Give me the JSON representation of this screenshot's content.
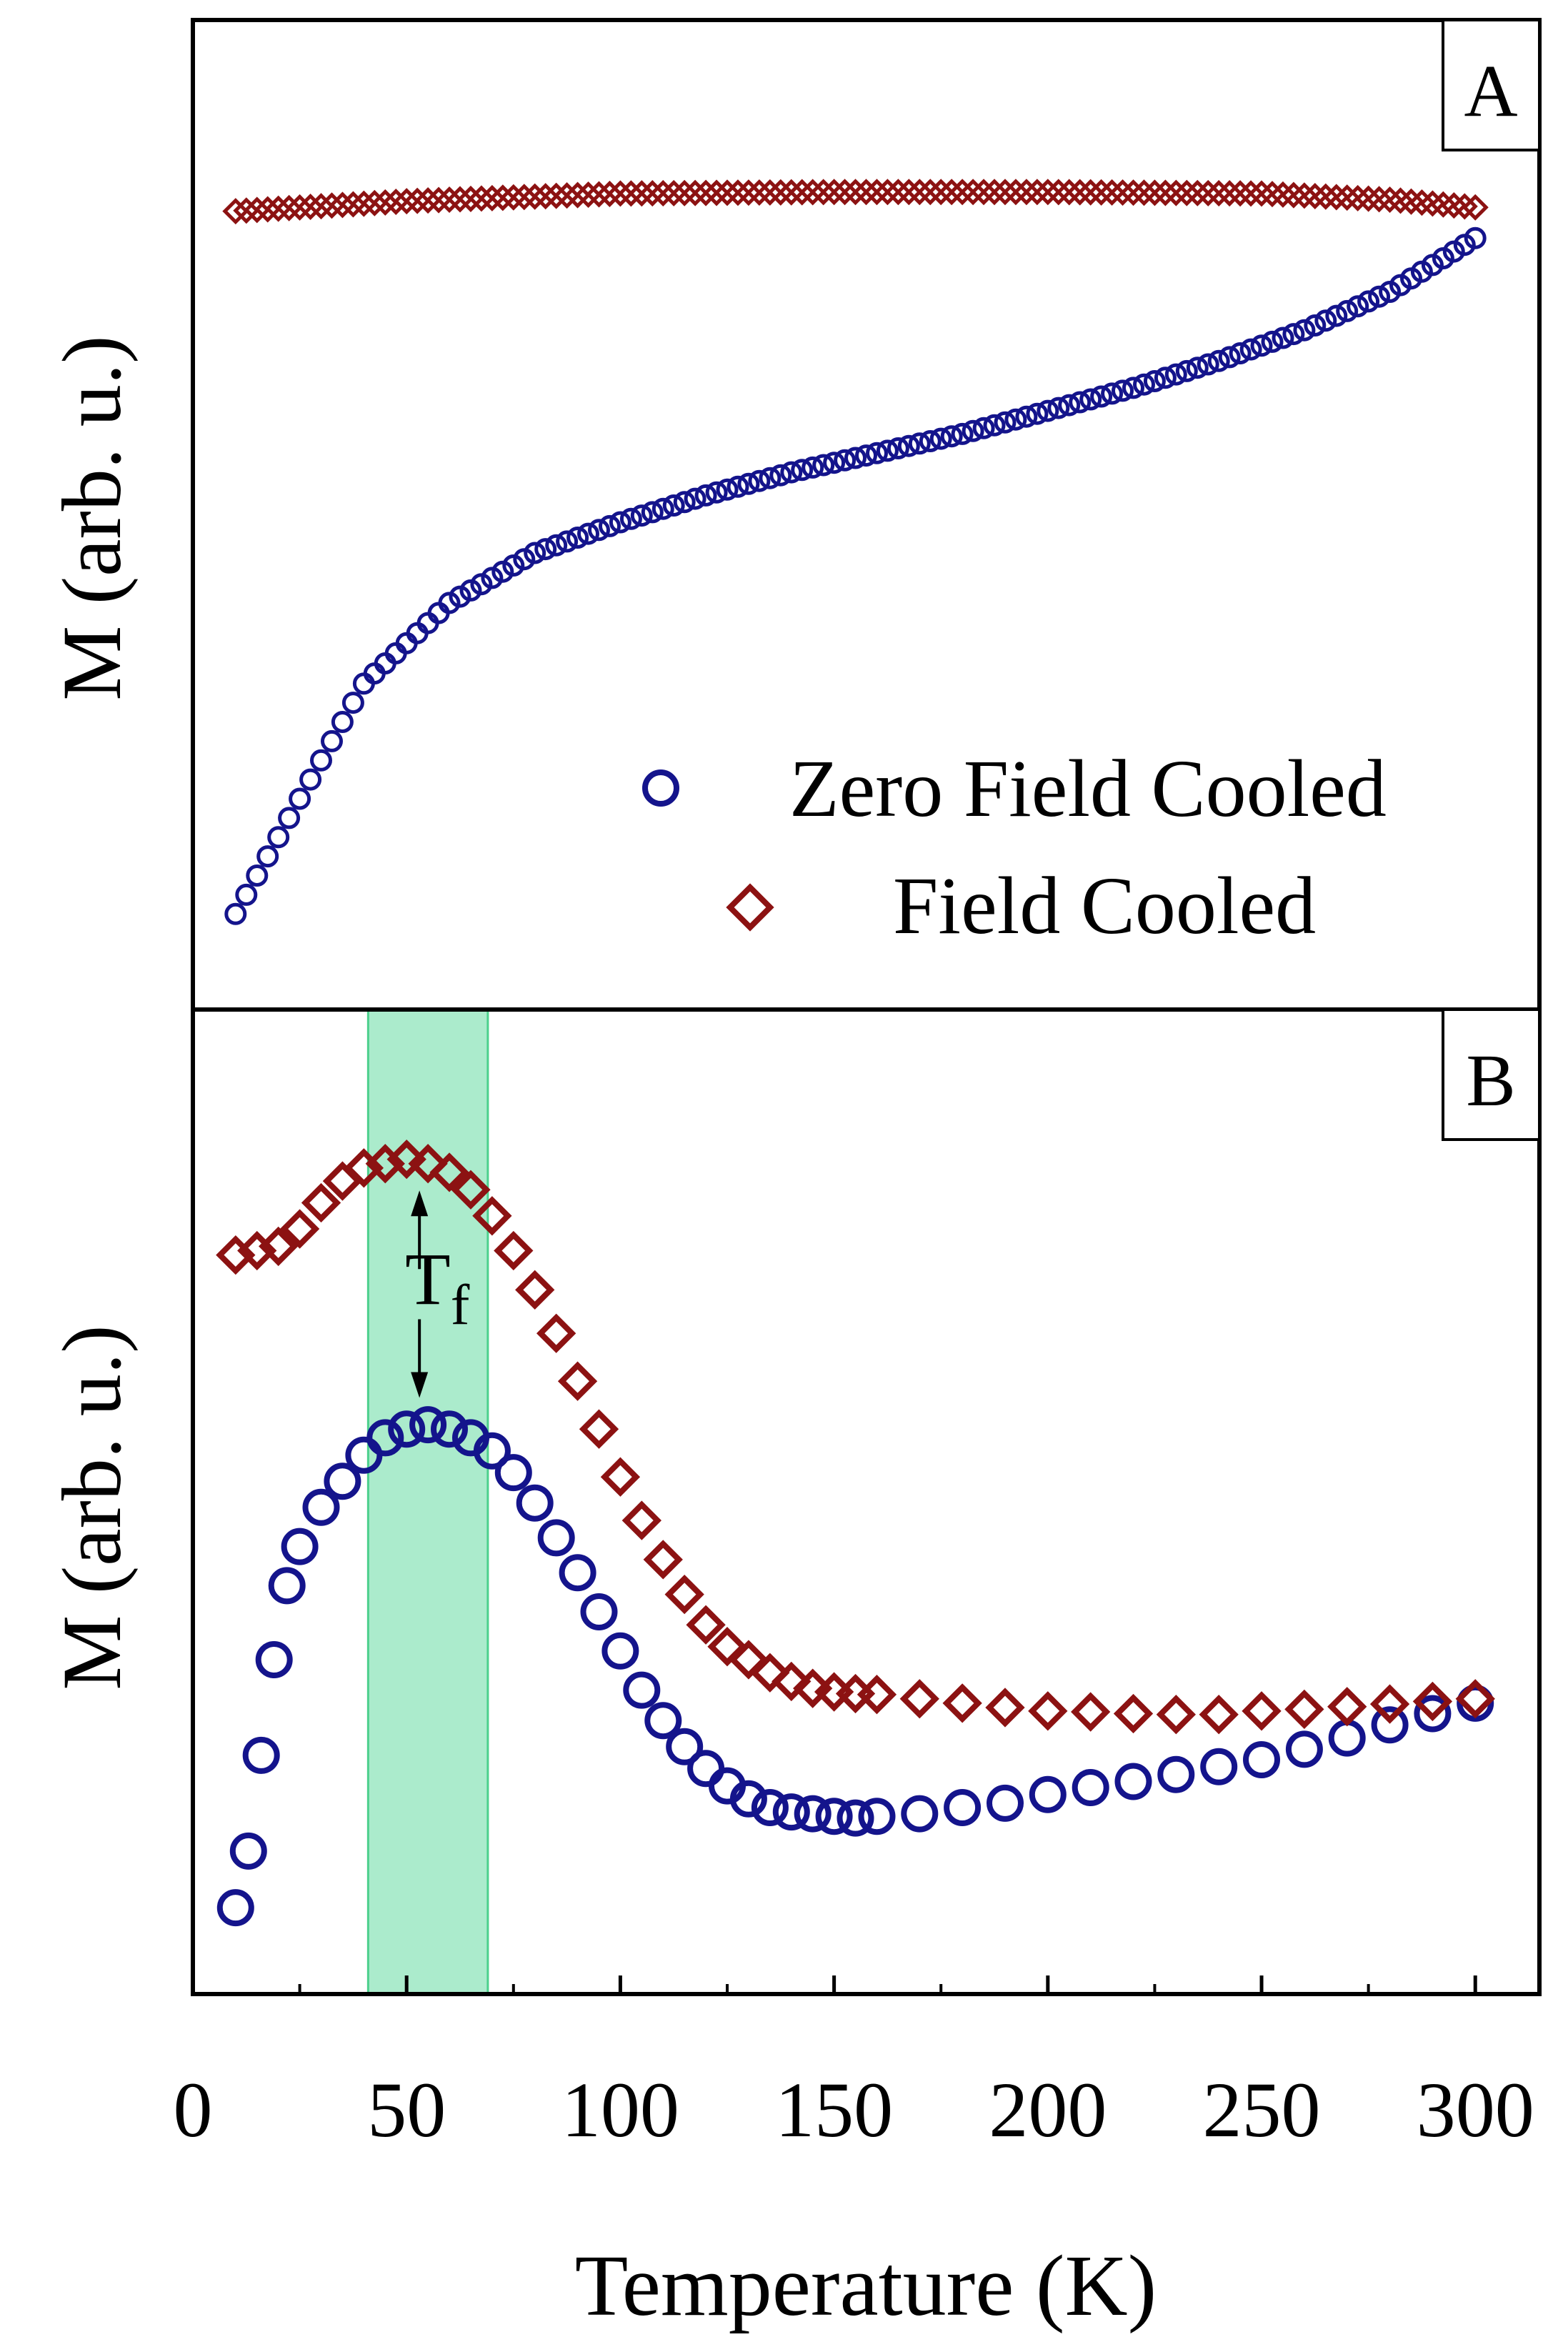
{
  "figure": {
    "x_axis_label": "Temperature (K)",
    "x_ticks": [
      "0",
      "50",
      "100",
      "150",
      "200",
      "250",
      "300"
    ],
    "colors": {
      "zfc": "#14148c",
      "fc": "#8c1212",
      "band_fill": "#abebcc",
      "band_edge": "#4cd08c",
      "axis": "#000000"
    }
  },
  "chart_data": [
    {
      "type": "scatter",
      "panel_label": "A",
      "ylabel": "M (arb. u.)",
      "xlabel": "Temperature (K)",
      "xlim": [
        0,
        315
      ],
      "ylim": [
        0,
        1
      ],
      "y_units": "arbitrary (normalized)",
      "legend": {
        "placement": "bottom-right",
        "entries": [
          {
            "label": "Zero Field Cooled",
            "marker": "circle",
            "series": "zfc"
          },
          {
            "label": "Field Cooled",
            "marker": "diamond",
            "series": "fc"
          }
        ]
      },
      "series": [
        {
          "id": "zfc",
          "name": "Zero Field Cooled",
          "marker": "circle",
          "color": "#14148c",
          "x": [
            10,
            25,
            40,
            60,
            80,
            100,
            120,
            140,
            160,
            180,
            200,
            220,
            240,
            260,
            280,
            300
          ],
          "y": [
            0.05,
            0.2,
            0.35,
            0.455,
            0.52,
            0.56,
            0.595,
            0.625,
            0.65,
            0.675,
            0.705,
            0.735,
            0.77,
            0.81,
            0.86,
            0.93
          ]
        },
        {
          "id": "fc",
          "name": "Field Cooled",
          "marker": "diamond",
          "color": "#8c1212",
          "x": [
            10,
            50,
            100,
            150,
            200,
            250,
            280,
            300
          ],
          "y": [
            0.965,
            0.978,
            0.988,
            0.99,
            0.99,
            0.988,
            0.98,
            0.97
          ]
        }
      ]
    },
    {
      "type": "scatter",
      "panel_label": "B",
      "ylabel": "M (arb. u.)",
      "xlabel": "Temperature (K)",
      "xlim": [
        0,
        315
      ],
      "ylim": [
        0,
        1
      ],
      "y_units": "arbitrary (normalized)",
      "highlight_band": {
        "x_range": [
          41,
          69
        ]
      },
      "annotation": {
        "text": "T",
        "subscript": "f",
        "x": 53
      },
      "series": [
        {
          "id": "zfc",
          "name": "Zero Field Cooled",
          "marker": "circle",
          "color": "#14148c",
          "x": [
            10,
            13,
            16,
            19,
            22,
            25,
            30,
            35,
            40,
            45,
            50,
            55,
            60,
            65,
            70,
            75,
            80,
            85,
            90,
            95,
            100,
            105,
            110,
            115,
            120,
            125,
            130,
            135,
            140,
            145,
            150,
            155,
            160,
            170,
            180,
            190,
            200,
            210,
            220,
            230,
            240,
            250,
            260,
            270,
            280,
            290,
            300
          ],
          "y": [
            0.05,
            0.115,
            0.225,
            0.335,
            0.42,
            0.465,
            0.51,
            0.54,
            0.57,
            0.59,
            0.6,
            0.605,
            0.6,
            0.59,
            0.575,
            0.55,
            0.515,
            0.475,
            0.435,
            0.39,
            0.345,
            0.3,
            0.265,
            0.235,
            0.21,
            0.19,
            0.175,
            0.165,
            0.16,
            0.158,
            0.155,
            0.153,
            0.155,
            0.158,
            0.165,
            0.17,
            0.18,
            0.188,
            0.195,
            0.203,
            0.212,
            0.22,
            0.232,
            0.245,
            0.26,
            0.273,
            0.285
          ]
        },
        {
          "id": "fc",
          "name": "Field Cooled",
          "marker": "diamond",
          "color": "#8c1212",
          "x": [
            10,
            15,
            20,
            25,
            30,
            35,
            40,
            45,
            50,
            55,
            60,
            65,
            70,
            75,
            80,
            85,
            90,
            95,
            100,
            105,
            110,
            115,
            120,
            125,
            130,
            135,
            140,
            145,
            150,
            155,
            160,
            170,
            180,
            190,
            200,
            210,
            220,
            230,
            240,
            250,
            260,
            270,
            280,
            290,
            300
          ],
          "y": [
            0.8,
            0.805,
            0.81,
            0.83,
            0.86,
            0.885,
            0.9,
            0.905,
            0.91,
            0.905,
            0.895,
            0.875,
            0.845,
            0.805,
            0.76,
            0.71,
            0.655,
            0.6,
            0.545,
            0.495,
            0.45,
            0.41,
            0.375,
            0.35,
            0.335,
            0.32,
            0.31,
            0.302,
            0.298,
            0.296,
            0.295,
            0.29,
            0.285,
            0.28,
            0.276,
            0.275,
            0.273,
            0.272,
            0.272,
            0.276,
            0.278,
            0.281,
            0.284,
            0.287,
            0.29
          ]
        }
      ]
    }
  ]
}
